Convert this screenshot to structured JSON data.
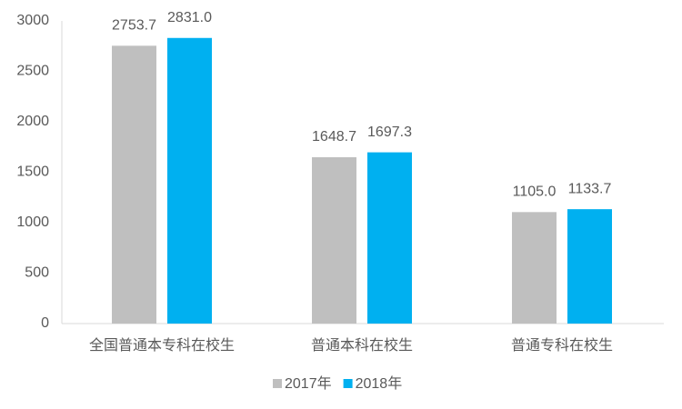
{
  "chart_data": {
    "type": "bar",
    "categories": [
      "全国普通本专科在校生",
      "普通本科在校生",
      "普通专科在校生"
    ],
    "series": [
      {
        "name": "2017年",
        "color": "#bfbfbf",
        "values": [
          2753.7,
          1648.7,
          1105.0
        ],
        "value_labels": [
          "2753.7",
          "1648.7",
          "1105.0"
        ]
      },
      {
        "name": "2018年",
        "color": "#00b0f0",
        "values": [
          2831.0,
          1697.3,
          1133.7
        ],
        "value_labels": [
          "2831.0",
          "1697.3",
          "1133.7"
        ]
      }
    ],
    "ylim": [
      0,
      3000
    ],
    "yticks": [
      0,
      500,
      1000,
      1500,
      2000,
      2500,
      3000
    ],
    "grid": false,
    "legend": "bottom"
  }
}
